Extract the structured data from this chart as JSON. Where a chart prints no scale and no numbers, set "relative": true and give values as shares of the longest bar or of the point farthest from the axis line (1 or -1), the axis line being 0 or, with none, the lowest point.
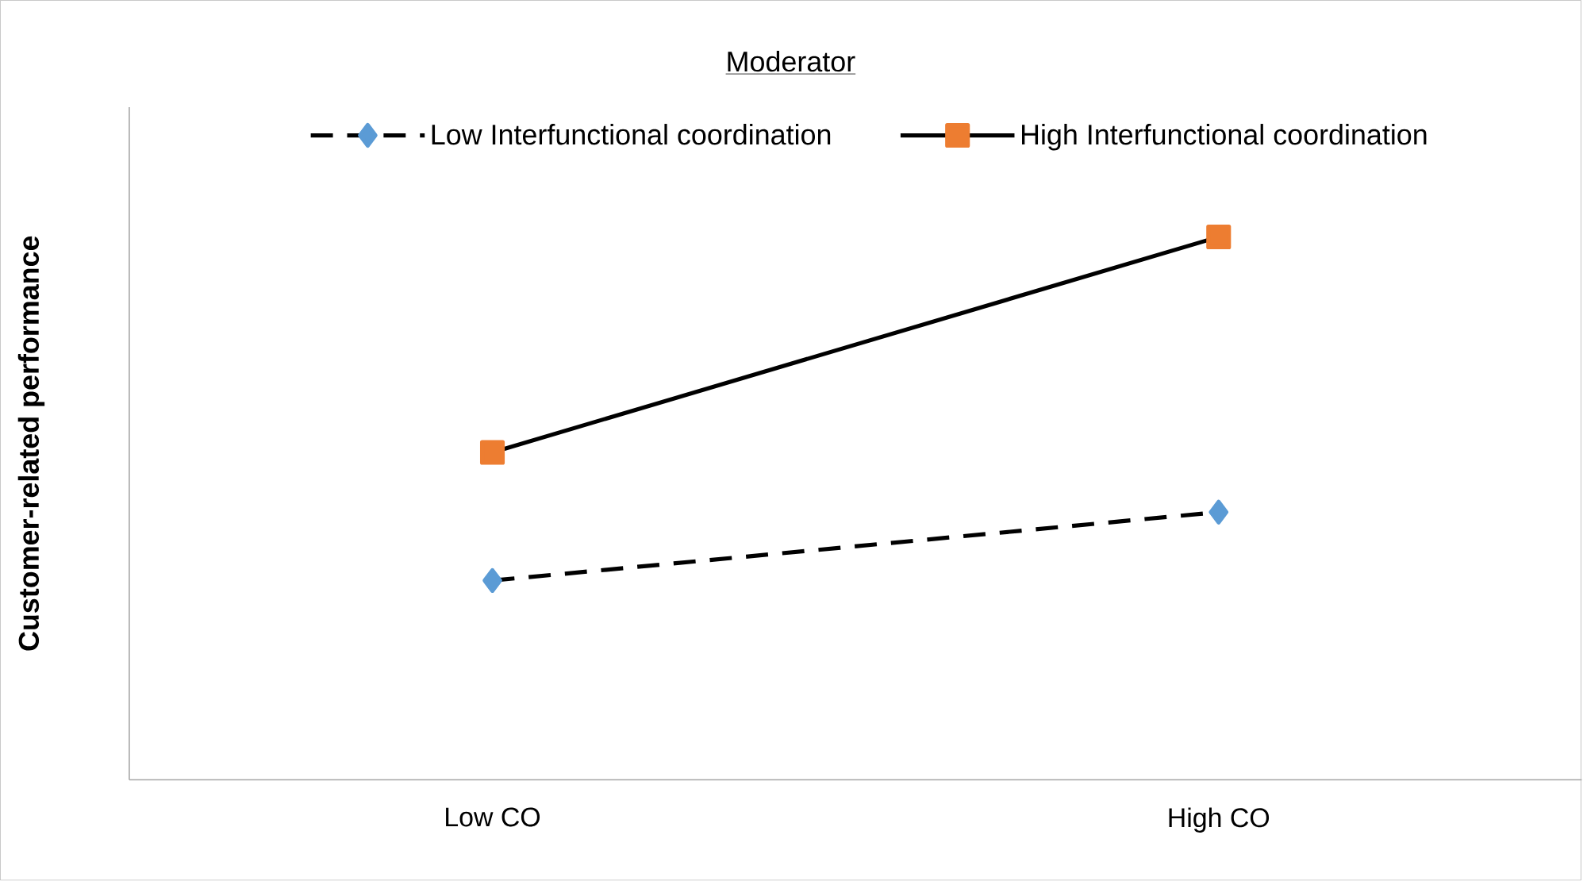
{
  "chart_data": {
    "type": "line",
    "title": "Moderator",
    "ylabel": "Customer-related performance",
    "categories": [
      "Low CO",
      "High CO"
    ],
    "relative": true,
    "legend": "top",
    "series": [
      {
        "name": "Low Interfunctional coordination",
        "color": "#5b9bd5",
        "values": [
          0.367,
          0.493
        ],
        "marker": "diamond",
        "line_style": "dashed"
      },
      {
        "name": "High Interfunctional coordination",
        "color": "#ed7d31",
        "values": [
          0.603,
          1
        ],
        "marker": "square",
        "line_style": "solid"
      }
    ]
  }
}
